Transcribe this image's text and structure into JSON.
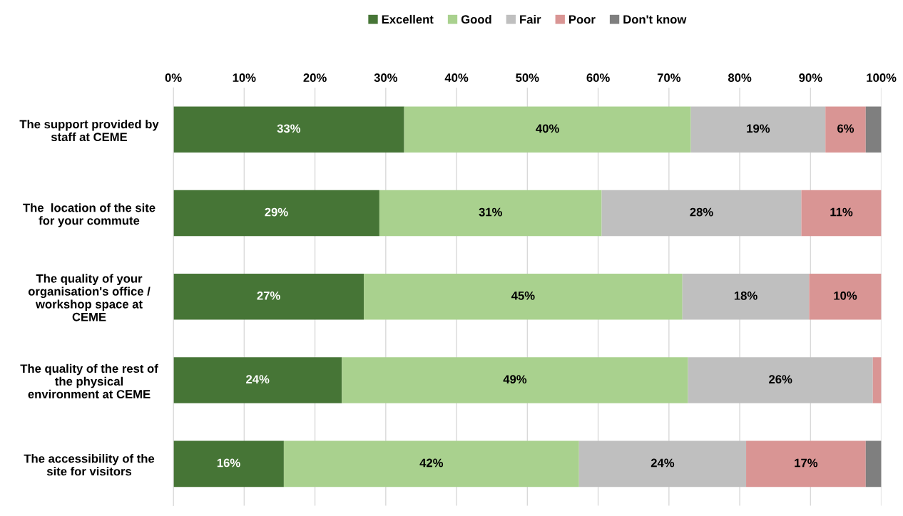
{
  "chart_data": {
    "type": "bar",
    "orientation": "horizontal",
    "stacked": true,
    "categories": [
      "The support provided by\nstaff at CEME",
      "The  location of the site\nfor your commute",
      "The quality of your\norganisation's office /\nworkshop space at\nCEME",
      "The quality of the rest of\nthe physical\nenvironment at CEME",
      "The accessibility of the\nsite for visitors"
    ],
    "series": [
      {
        "name": "Excellent",
        "color": "#467536",
        "values": [
          32.6,
          29.1,
          26.9,
          23.8,
          15.6
        ],
        "value_labels": [
          "33%",
          "29%",
          "27%",
          "24%",
          "16%"
        ]
      },
      {
        "name": "Good",
        "color": "#a9d18e",
        "values": [
          40.5,
          31.4,
          45.0,
          48.9,
          41.7
        ],
        "value_labels": [
          "40%",
          "31%",
          "45%",
          "49%",
          "42%"
        ]
      },
      {
        "name": "Fair",
        "color": "#bfbfbf",
        "values": [
          19.0,
          28.2,
          17.9,
          26.1,
          23.6
        ],
        "value_labels": [
          "19%",
          "28%",
          "18%",
          "26%",
          "24%"
        ]
      },
      {
        "name": "Poor",
        "color": "#d99594",
        "values": [
          5.7,
          11.3,
          10.2,
          1.2,
          16.9
        ],
        "value_labels": [
          "6%",
          "11%",
          "10%",
          null,
          "17%"
        ]
      },
      {
        "name": "Don't know",
        "color": "#7f7f7f",
        "values": [
          2.2,
          0,
          0,
          0,
          2.2
        ],
        "value_labels": [
          null,
          null,
          null,
          null,
          null
        ]
      }
    ],
    "xlim": [
      0,
      100
    ],
    "xticks": [
      {
        "value": 0,
        "label": "0%"
      },
      {
        "value": 10,
        "label": "10%"
      },
      {
        "value": 20,
        "label": "20%"
      },
      {
        "value": 30,
        "label": "30%"
      },
      {
        "value": 40,
        "label": "40%"
      },
      {
        "value": 50,
        "label": "50%"
      },
      {
        "value": 60,
        "label": "60%"
      },
      {
        "value": 70,
        "label": "70%"
      },
      {
        "value": 80,
        "label": "80%"
      },
      {
        "value": 90,
        "label": "90%"
      },
      {
        "value": 100,
        "label": "100%"
      }
    ],
    "grid": "x",
    "legend": "top"
  }
}
